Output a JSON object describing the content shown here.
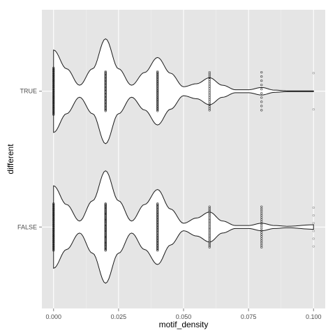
{
  "chart_data": {
    "type": "violin",
    "xlabel": "motif_density",
    "ylabel": "different",
    "xlim": [
      -0.0045,
      0.1045
    ],
    "x_ticks": [
      "0.000",
      "0.025",
      "0.050",
      "0.075",
      "0.100"
    ],
    "x_tick_values": [
      0,
      0.025,
      0.05,
      0.075,
      0.1
    ],
    "categories": [
      "TRUE",
      "FALSE"
    ],
    "grid": true,
    "legend": "none",
    "colors": {
      "panel_bg": "#e5e5e5",
      "grid_major": "#ffffff",
      "grid_minor": "#f2f2f2",
      "violin_fill": "#ffffff",
      "violin_stroke": "#1a1a1a",
      "point": "#000000",
      "tick_label": "#4d4d4d"
    },
    "series": [
      {
        "category": "TRUE",
        "density_profile": [
          [
            0.0,
            0.55
          ],
          [
            0.005,
            0.3
          ],
          [
            0.01,
            0.08
          ],
          [
            0.015,
            0.3
          ],
          [
            0.02,
            0.7
          ],
          [
            0.025,
            0.3
          ],
          [
            0.03,
            0.08
          ],
          [
            0.035,
            0.25
          ],
          [
            0.04,
            0.45
          ],
          [
            0.045,
            0.24
          ],
          [
            0.05,
            0.06
          ],
          [
            0.055,
            0.1
          ],
          [
            0.06,
            0.18
          ],
          [
            0.065,
            0.08
          ],
          [
            0.07,
            0.02
          ],
          [
            0.075,
            0.02
          ],
          [
            0.08,
            0.05
          ],
          [
            0.085,
            0.015
          ],
          [
            0.09,
            0.005
          ],
          [
            0.1,
            0.005
          ]
        ],
        "points": [
          {
            "x": 0.0,
            "spread": 0.5,
            "n": 45
          },
          {
            "x": 0.02,
            "spread": 0.42,
            "n": 45
          },
          {
            "x": 0.04,
            "spread": 0.42,
            "n": 40
          },
          {
            "x": 0.06,
            "spread": 0.45,
            "n": 22
          },
          {
            "x": 0.08,
            "spread": 0.45,
            "n": 10
          },
          {
            "x": 0.1,
            "spread": 0.43,
            "n": 2
          }
        ]
      },
      {
        "category": "FALSE",
        "density_profile": [
          [
            0.0,
            0.55
          ],
          [
            0.005,
            0.3
          ],
          [
            0.01,
            0.08
          ],
          [
            0.015,
            0.35
          ],
          [
            0.02,
            0.75
          ],
          [
            0.025,
            0.35
          ],
          [
            0.03,
            0.08
          ],
          [
            0.035,
            0.3
          ],
          [
            0.04,
            0.5
          ],
          [
            0.045,
            0.24
          ],
          [
            0.05,
            0.05
          ],
          [
            0.055,
            0.12
          ],
          [
            0.06,
            0.2
          ],
          [
            0.065,
            0.08
          ],
          [
            0.07,
            0.02
          ],
          [
            0.075,
            0.02
          ],
          [
            0.08,
            0.05
          ],
          [
            0.085,
            0.02
          ],
          [
            0.09,
            0.01
          ],
          [
            0.1,
            0.03
          ]
        ],
        "points": [
          {
            "x": 0.0,
            "spread": 0.5,
            "n": 45
          },
          {
            "x": 0.02,
            "spread": 0.5,
            "n": 60
          },
          {
            "x": 0.04,
            "spread": 0.5,
            "n": 50
          },
          {
            "x": 0.06,
            "spread": 0.48,
            "n": 28
          },
          {
            "x": 0.08,
            "spread": 0.48,
            "n": 20
          },
          {
            "x": 0.1,
            "spread": 0.46,
            "n": 6
          }
        ]
      }
    ]
  }
}
